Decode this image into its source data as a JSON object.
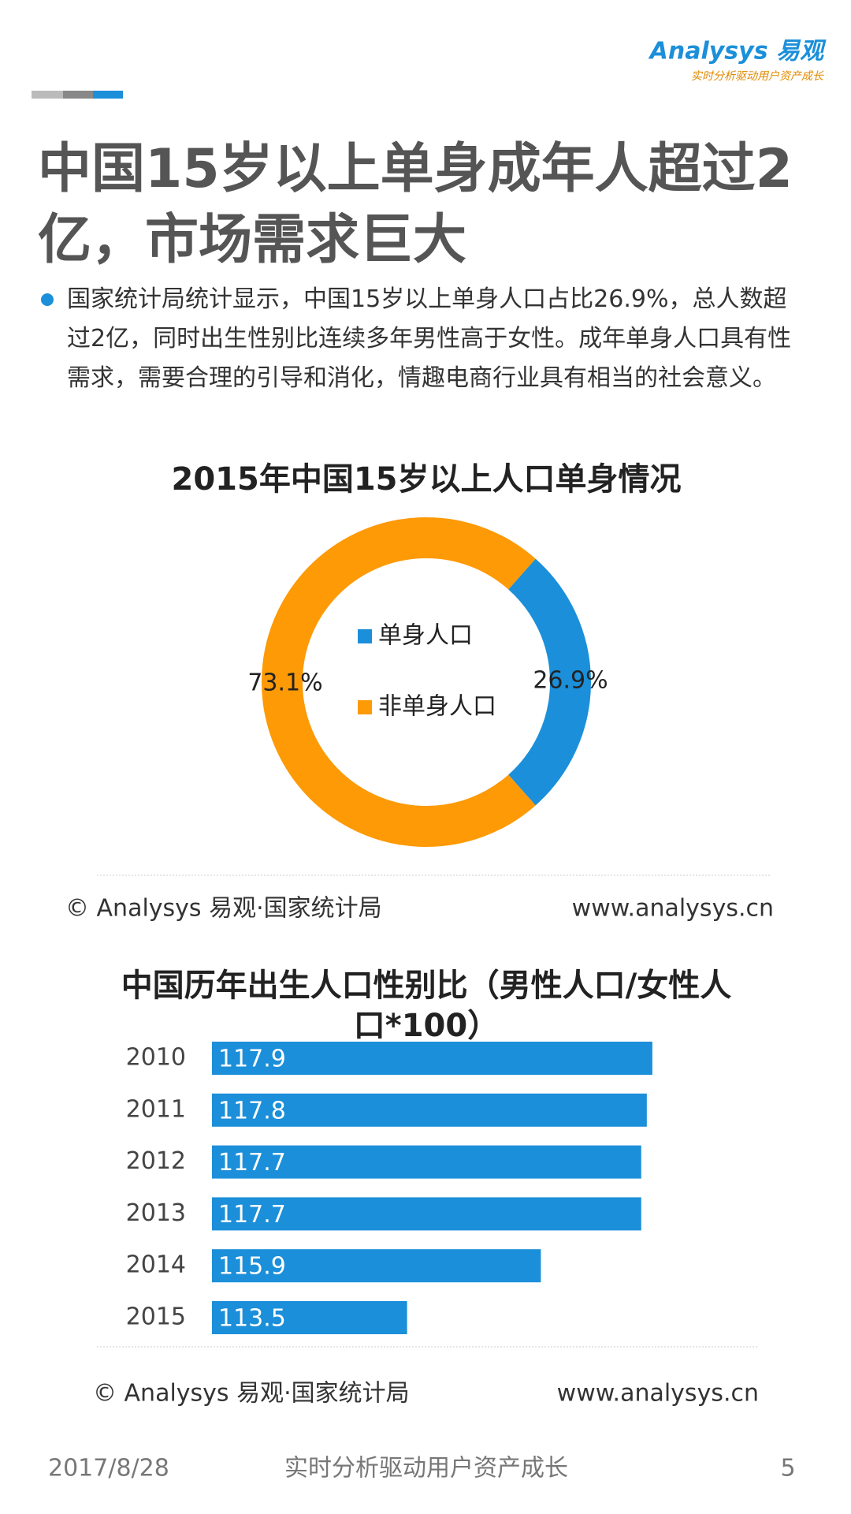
{
  "header": {
    "logo": "Analysys 易观",
    "slogan": "实时分析驱动用户资产成长"
  },
  "title": "中国15岁以上单身成年人超过2亿，市场需求巨大",
  "bullet": "国家统计局统计显示，中国15岁以上单身人口占比26.9%，总人数超过2亿，同时出生性别比连续多年男性高于女性。成年单身人口具有性需求，需要合理的引导和消化，情趣电商行业具有相当的社会意义。",
  "chart_data": [
    {
      "type": "donut",
      "title": "2015年中国15岁以上人口单身情况",
      "categories": [
        "单身人口",
        "非单身人口"
      ],
      "values": [
        26.9,
        73.1
      ],
      "value_labels": [
        "26.9%",
        "73.1%"
      ],
      "colors": [
        "#1b8fd9",
        "#fd9a06"
      ]
    },
    {
      "type": "hbar",
      "title": "中国历年出生人口性别比（男性人口/女性人口*100）",
      "categories": [
        "2010",
        "2011",
        "2012",
        "2013",
        "2014",
        "2015"
      ],
      "values": [
        117.9,
        117.8,
        117.7,
        117.7,
        115.9,
        113.5
      ],
      "color": "#1b8fd9",
      "xlim": [
        110,
        118
      ]
    }
  ],
  "sources": [
    {
      "source": "© Analysys 易观·国家统计局",
      "site": "www.analysys.cn"
    },
    {
      "source": "© Analysys 易观·国家统计局",
      "site": "www.analysys.cn"
    }
  ],
  "footer": {
    "date": "2017/8/28",
    "slogan": "实时分析驱动用户资产成长",
    "page": "5"
  }
}
